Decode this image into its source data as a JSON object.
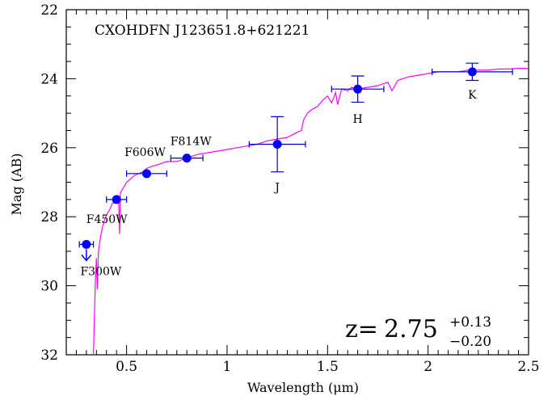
{
  "chart_data": {
    "type": "scatter",
    "title": "CXOHDFN J123651.8+621221",
    "xlabel": "Wavelength (μm)",
    "ylabel": "Mag (AB)",
    "xlim": [
      0.2,
      2.5
    ],
    "ylim": [
      32,
      22
    ],
    "y_inverted": true,
    "x_ticks": [
      0.5,
      1,
      1.5,
      2,
      2.5
    ],
    "x_tick_labels": [
      "0.5",
      "1",
      "1.5",
      "2",
      "2.5"
    ],
    "y_ticks": [
      22,
      24,
      26,
      28,
      30,
      32
    ],
    "y_tick_labels": [
      "22",
      "24",
      "26",
      "28",
      "30",
      "32"
    ],
    "grid": false,
    "colors": {
      "points": "#0000ff",
      "errorbars": "#0000cc",
      "template": "#ff00ff",
      "axes": "#000000"
    },
    "photometry": [
      {
        "band": "F300W",
        "x": 0.3,
        "y": 28.8,
        "xerr": 0.035,
        "yerr": 0,
        "upper_limit": true
      },
      {
        "band": "F450W",
        "x": 0.45,
        "y": 27.5,
        "xerr": 0.05,
        "yerr": 0
      },
      {
        "band": "F606W",
        "x": 0.6,
        "y": 26.75,
        "xerr": 0.1,
        "yerr": 0
      },
      {
        "band": "F814W",
        "x": 0.8,
        "y": 26.3,
        "xerr": 0.08,
        "yerr": 0
      },
      {
        "band": "J",
        "x": 1.25,
        "y": 25.9,
        "xerr": 0.14,
        "yerr": 0.8
      },
      {
        "band": "H",
        "x": 1.65,
        "y": 24.3,
        "xerr": 0.13,
        "yerr": 0.38
      },
      {
        "band": "K",
        "x": 2.22,
        "y": 23.8,
        "xerr": 0.2,
        "yerr": 0.25
      }
    ],
    "template_sed": {
      "x": [
        0.335,
        0.34,
        0.345,
        0.35,
        0.355,
        0.36,
        0.37,
        0.38,
        0.39,
        0.4,
        0.41,
        0.42,
        0.43,
        0.44,
        0.45,
        0.46,
        0.465,
        0.47,
        0.48,
        0.5,
        0.52,
        0.54,
        0.56,
        0.58,
        0.6,
        0.62,
        0.65,
        0.7,
        0.75,
        0.8,
        0.85,
        0.9,
        0.95,
        1.0,
        1.05,
        1.1,
        1.15,
        1.2,
        1.25,
        1.3,
        1.35,
        1.37,
        1.38,
        1.4,
        1.42,
        1.45,
        1.48,
        1.5,
        1.52,
        1.54,
        1.55,
        1.57,
        1.6,
        1.62,
        1.65,
        1.7,
        1.75,
        1.8,
        1.82,
        1.85,
        1.9,
        1.95,
        2.0,
        2.05,
        2.1,
        2.15,
        2.2,
        2.25,
        2.3,
        2.35,
        2.4,
        2.45,
        2.5
      ],
      "y": [
        32.0,
        30.9,
        29.8,
        29.2,
        30.1,
        29.0,
        28.6,
        28.3,
        28.1,
        27.95,
        27.85,
        27.75,
        27.6,
        27.6,
        27.5,
        27.4,
        28.5,
        27.3,
        27.2,
        27.0,
        26.9,
        26.8,
        26.75,
        26.7,
        26.6,
        26.55,
        26.5,
        26.4,
        26.4,
        26.3,
        26.2,
        26.15,
        26.1,
        26.05,
        26.0,
        25.95,
        25.9,
        25.8,
        25.75,
        25.7,
        25.55,
        25.5,
        25.2,
        25.0,
        24.9,
        24.8,
        24.6,
        24.5,
        24.7,
        24.4,
        24.75,
        24.3,
        24.35,
        24.25,
        24.3,
        24.25,
        24.2,
        24.1,
        24.35,
        24.05,
        23.95,
        23.9,
        23.85,
        23.8,
        23.8,
        23.8,
        23.75,
        23.75,
        23.75,
        23.72,
        23.72,
        23.7,
        23.7
      ]
    },
    "annotations": {
      "redshift_prefix": "z=",
      "redshift_value": "2.75",
      "redshift_plus": "+0.13",
      "redshift_minus": "−0.20"
    }
  }
}
